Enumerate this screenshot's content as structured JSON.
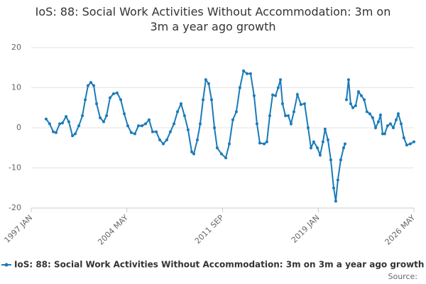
{
  "chart_data": {
    "type": "line",
    "title": "IoS: 88: Social Work Activities Without Accommodation: 3m on 3m a year ago growth",
    "source": "Source:",
    "x": [
      1998.14,
      1998.41,
      1998.69,
      1998.9,
      1999.18,
      1999.39,
      1999.67,
      1999.88,
      2000.16,
      2000.37,
      2000.65,
      2000.92,
      2001.14,
      2001.35,
      2001.57,
      2001.79,
      2002.01,
      2002.28,
      2002.55,
      2002.77,
      2003.04,
      2003.31,
      2003.58,
      2003.86,
      2004.13,
      2004.4,
      2004.67,
      2004.94,
      2005.22,
      2005.49,
      2005.76,
      2006.03,
      2006.3,
      2006.58,
      2006.85,
      2007.12,
      2007.39,
      2007.66,
      2007.94,
      2008.21,
      2008.48,
      2008.75,
      2009.02,
      2009.3,
      2009.46,
      2009.73,
      2009.95,
      2010.17,
      2010.38,
      2010.6,
      2010.82,
      2011.04,
      2011.25,
      2011.58,
      2011.91,
      2012.18,
      2012.45,
      2012.72,
      2012.99,
      2013.27,
      2013.54,
      2013.81,
      2014.08,
      2014.3,
      2014.52,
      2014.85,
      2015.06,
      2015.28,
      2015.5,
      2015.72,
      2015.93,
      2016.1,
      2016.26,
      2016.48,
      2016.7,
      2016.91,
      2017.13,
      2017.4,
      2017.67,
      2017.95,
      2018.22,
      2018.44,
      2018.65,
      2018.93,
      2019.14,
      2019.36,
      2019.52,
      2019.74,
      2019.96,
      2020.18,
      2020.34,
      2020.5,
      2020.72,
      2020.94,
      2021.05,
      2021.1,
      2021.16,
      2021.32,
      2021.48,
      2021.65,
      2021.86,
      2022.08,
      2022.3,
      2022.52,
      2022.73,
      2022.95,
      2023.17,
      2023.39,
      2023.61,
      2023.77,
      2023.93,
      2024.09,
      2024.31,
      2024.53,
      2024.75,
      2024.97,
      2025.13,
      2025.35,
      2025.56,
      2025.78,
      2026.05,
      2026.33
    ],
    "series": [
      {
        "name": "IoS: 88: Social Work Activities Without Accommodation: 3m on 3m a year ago growth",
        "color": "#1a7ab8",
        "values": [
          2.2,
          1,
          -1,
          -1.2,
          1,
          1.2,
          2.8,
          1.5,
          -2,
          -1.5,
          0.5,
          3,
          7,
          10.5,
          11.3,
          10.5,
          6,
          2.5,
          1.5,
          3,
          7.5,
          8.5,
          8.7,
          7,
          3.5,
          0.5,
          -1.2,
          -1.5,
          0.5,
          0.5,
          1,
          2,
          -1,
          -1,
          -3,
          -4,
          -3,
          -1,
          1,
          4,
          6,
          3,
          -0.5,
          -6,
          -6.5,
          -3,
          1,
          7,
          12,
          11,
          7,
          0,
          -5,
          -6.5,
          -7.5,
          -4,
          2,
          4,
          10,
          14.2,
          13.5,
          13.5,
          8,
          1,
          -3.8,
          -4,
          -3.5,
          3,
          8.2,
          8,
          10,
          12,
          6,
          3,
          3,
          1,
          4,
          8.3,
          5.8,
          6,
          0,
          -5,
          -3.5,
          -5,
          -6.8,
          -3.5,
          -0.3,
          -3,
          -8,
          -15,
          -18.3,
          -13,
          -8,
          -5,
          -4,
          null,
          7,
          12,
          6,
          5,
          5.5,
          9,
          8,
          7,
          4,
          3.5,
          2.5,
          0,
          1.5,
          3.2,
          -1.5,
          -1.5,
          0.5,
          1,
          0,
          2,
          3.5,
          1,
          -2.5,
          -4.3,
          -4,
          -3.5
        ]
      }
    ],
    "xlim": [
      1997,
      2026.33
    ],
    "xticks": [
      {
        "value": 1997,
        "label": "1997 JAN"
      },
      {
        "value": 2004.33,
        "label": "2004 MAY"
      },
      {
        "value": 2011.67,
        "label": "2011 SEP"
      },
      {
        "value": 2019,
        "label": "2019 JAN"
      },
      {
        "value": 2026.33,
        "label": "2026 MAY"
      }
    ],
    "ylim": [
      -20,
      20
    ],
    "yticks": [
      -20,
      -10,
      0,
      10,
      20
    ],
    "grid": true
  }
}
